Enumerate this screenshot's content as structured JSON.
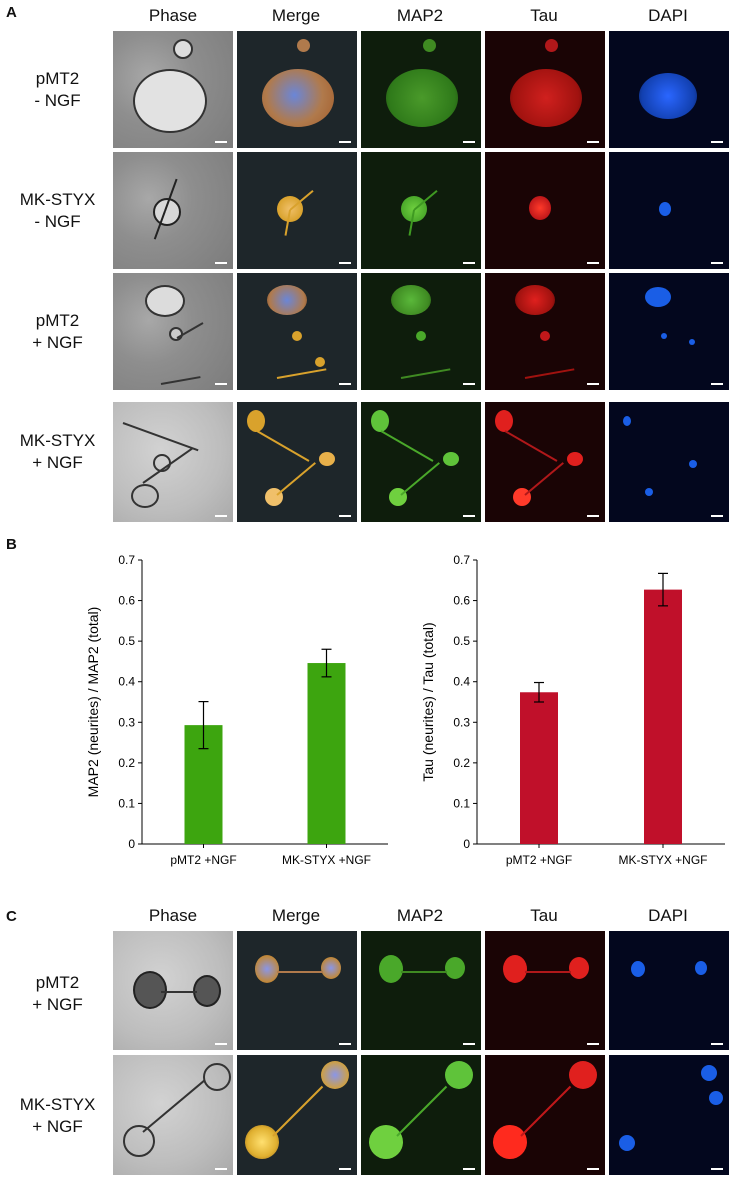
{
  "panel_letters": {
    "a": "A",
    "b": "B",
    "c": "C"
  },
  "columns": [
    "Phase",
    "Merge",
    "MAP2",
    "Tau",
    "DAPI"
  ],
  "panel_a_rows": [
    {
      "line1": "pMT2",
      "line2": "- NGF"
    },
    {
      "line1": "MK-STYX",
      "line2": "- NGF"
    },
    {
      "line1": "pMT2",
      "line2": "+ NGF"
    },
    {
      "line1": "MK-STYX",
      "line2": "+ NGF"
    }
  ],
  "panel_c_rows": [
    {
      "line1": "pMT2",
      "line2": "+ NGF"
    },
    {
      "line1": "MK-STYX",
      "line2": "+ NGF"
    }
  ],
  "colors": {
    "map2_bar": "#3da50f",
    "tau_bar": "#c0102a",
    "merge_cell": "#d9a22c",
    "map2_cell": "#5fc33a",
    "tau_cell": "#e0201e",
    "dapi_cell": "#1a5ee6"
  },
  "chart_data": [
    {
      "type": "bar",
      "categories": [
        "pMT2 +NGF",
        "MK-STYX +NGF"
      ],
      "values": [
        0.293,
        0.446
      ],
      "errors": [
        0.058,
        0.034
      ],
      "ylabel": "MAP2 (neurites) / MAP2 (total)",
      "ylim": [
        0,
        0.7
      ],
      "yticks": [
        "0",
        "0.1",
        "0.2",
        "0.3",
        "0.4",
        "0.5",
        "0.6",
        "0.7"
      ],
      "grid": false
    },
    {
      "type": "bar",
      "categories": [
        "pMT2 +NGF",
        "MK-STYX +NGF"
      ],
      "values": [
        0.374,
        0.627
      ],
      "errors": [
        0.024,
        0.04
      ],
      "ylabel": "Tau (neurites) / Tau (total)",
      "ylim": [
        0,
        0.7
      ],
      "yticks": [
        "0",
        "0.1",
        "0.2",
        "0.3",
        "0.4",
        "0.5",
        "0.6",
        "0.7"
      ],
      "grid": false
    }
  ]
}
